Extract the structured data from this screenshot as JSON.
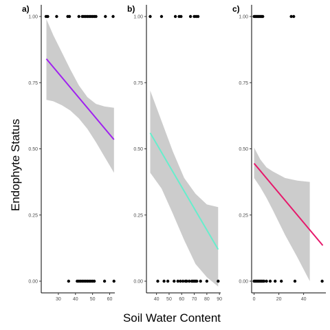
{
  "chart_data": {
    "type": "scatter",
    "xlabel": "Soil Water Content",
    "ylabel": "Endophyte Status",
    "ylim": [
      0,
      1
    ],
    "yticks": [
      "0.00",
      "0.25",
      "0.50",
      "0.75",
      "1.00"
    ],
    "grid": false,
    "panels": [
      {
        "label": "a)",
        "xlim": [
          20,
          63
        ],
        "xticks": [
          30,
          40,
          50,
          60
        ],
        "line_color": "#a020f0",
        "band_color": "#cccccc",
        "points_y1": [
          22.8,
          23.8,
          29,
          35.5,
          36.5,
          42,
          44,
          45,
          46,
          47,
          48,
          49,
          50,
          51,
          52,
          57.5,
          62
        ],
        "points_y0": [
          36,
          41,
          42,
          43,
          44,
          45,
          46,
          47,
          48,
          49,
          50,
          51,
          57,
          62.5
        ],
        "fit": {
          "x": [
            23,
            62.5
          ],
          "y": [
            0.84,
            0.535
          ]
        },
        "band": {
          "x": [
            23,
            27,
            32,
            37,
            42,
            47,
            52,
            57,
            62.5
          ],
          "lower": [
            0.685,
            0.68,
            0.665,
            0.645,
            0.615,
            0.575,
            0.525,
            0.47,
            0.41
          ],
          "upper": [
            0.99,
            0.93,
            0.865,
            0.8,
            0.74,
            0.695,
            0.67,
            0.66,
            0.655
          ]
        }
      },
      {
        "label": "b)",
        "xlim": [
          32,
          91
        ],
        "xticks": [
          40,
          50,
          60,
          70,
          80,
          90
        ],
        "line_color": "#66eecc",
        "band_color": "#cccccc",
        "points_y1": [
          35,
          44,
          55,
          58,
          59.5,
          67,
          70,
          71.5,
          73
        ],
        "points_y0": [
          41,
          46,
          49,
          54,
          57,
          59,
          61,
          63,
          64,
          66,
          68,
          69,
          70,
          71,
          72,
          75,
          80,
          89
        ],
        "fit": {
          "x": [
            35,
            89
          ],
          "y": [
            0.56,
            0.12
          ]
        },
        "band": {
          "x": [
            35,
            44,
            53,
            62,
            71,
            80,
            89
          ],
          "lower": [
            0.41,
            0.35,
            0.255,
            0.155,
            0.065,
            0.015,
            -0.02
          ],
          "upper": [
            0.72,
            0.605,
            0.49,
            0.39,
            0.33,
            0.29,
            0.28
          ]
        }
      },
      {
        "label": "c)",
        "xlim": [
          -2,
          58
        ],
        "xticks": [
          0,
          20,
          40
        ],
        "line_color": "#e6186b",
        "band_color": "#cccccc",
        "points_y1": [
          0,
          1,
          2,
          3,
          4,
          5,
          6,
          7,
          30,
          32
        ],
        "points_y0": [
          0,
          1,
          2,
          3,
          4,
          5,
          6,
          7,
          8,
          10,
          13,
          17,
          22,
          33,
          55
        ],
        "fit": {
          "x": [
            0,
            55.5
          ],
          "y": [
            0.445,
            0.135
          ]
        },
        "band": {
          "x": [
            0,
            5,
            10,
            15,
            25,
            35,
            45
          ],
          "lower": [
            0.39,
            0.355,
            0.315,
            0.27,
            0.175,
            0.09,
            0.0
          ],
          "upper": [
            0.505,
            0.46,
            0.43,
            0.415,
            0.39,
            0.38,
            0.375
          ]
        }
      }
    ]
  }
}
